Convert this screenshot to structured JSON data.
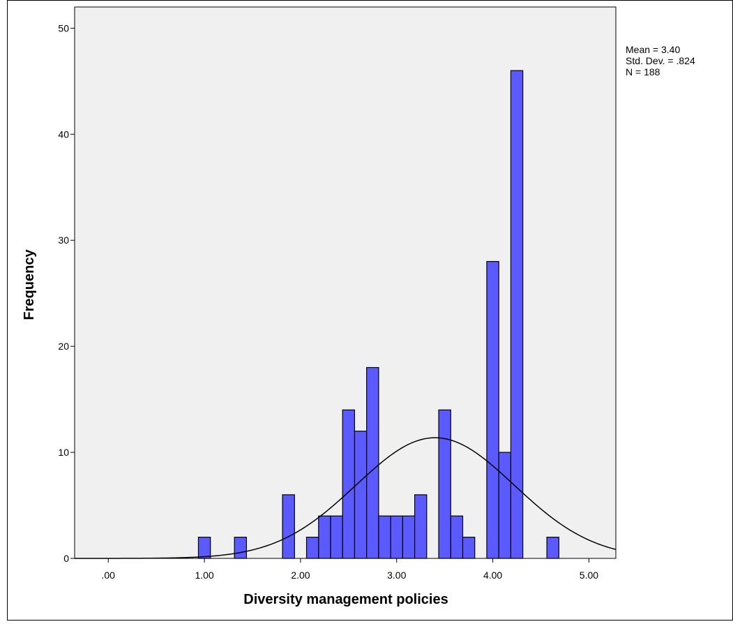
{
  "chart_data": {
    "type": "bar",
    "subtype": "histogram",
    "xlabel": "Diversity management policies",
    "ylabel": "Frequency",
    "xlim": [
      -0.35,
      5.28
    ],
    "ylim": [
      0,
      52
    ],
    "xticks": [
      {
        "value": 0,
        "label": ".00"
      },
      {
        "value": 1,
        "label": "1.00"
      },
      {
        "value": 2,
        "label": "2.00"
      },
      {
        "value": 3,
        "label": "3.00"
      },
      {
        "value": 4,
        "label": "4.00"
      },
      {
        "value": 5,
        "label": "5.00"
      }
    ],
    "yticks": [
      {
        "value": 0,
        "label": "0"
      },
      {
        "value": 10,
        "label": "10"
      },
      {
        "value": 20,
        "label": "20"
      },
      {
        "value": 30,
        "label": "30"
      },
      {
        "value": 40,
        "label": "40"
      },
      {
        "value": 50,
        "label": "50"
      }
    ],
    "bin_width": 0.125,
    "bins": [
      {
        "x0": 0.9375,
        "count": 2
      },
      {
        "x0": 1.3125,
        "count": 2
      },
      {
        "x0": 1.8125,
        "count": 6
      },
      {
        "x0": 2.0625,
        "count": 2
      },
      {
        "x0": 2.1875,
        "count": 4
      },
      {
        "x0": 2.3125,
        "count": 4
      },
      {
        "x0": 2.4375,
        "count": 14
      },
      {
        "x0": 2.5625,
        "count": 12
      },
      {
        "x0": 2.6875,
        "count": 18
      },
      {
        "x0": 2.8125,
        "count": 4
      },
      {
        "x0": 2.9375,
        "count": 4
      },
      {
        "x0": 3.0625,
        "count": 4
      },
      {
        "x0": 3.1875,
        "count": 6
      },
      {
        "x0": 3.4375,
        "count": 14
      },
      {
        "x0": 3.5625,
        "count": 4
      },
      {
        "x0": 3.6875,
        "count": 2
      },
      {
        "x0": 3.9375,
        "count": 28
      },
      {
        "x0": 4.0625,
        "count": 10
      },
      {
        "x0": 4.1875,
        "count": 46
      },
      {
        "x0": 4.5625,
        "count": 2
      }
    ],
    "normal_curve": {
      "mean": 3.4,
      "sd": 0.824,
      "n": 188
    },
    "stats_lines": [
      "Mean = 3.40",
      "Std. Dev. = .824",
      "N = 188"
    ],
    "colors": {
      "bar_fill": "#5a5aff",
      "bar_stroke": "#000000",
      "plot_background": "#f0f0f0",
      "curve": "#000000"
    },
    "grid": false,
    "legend": "none"
  }
}
